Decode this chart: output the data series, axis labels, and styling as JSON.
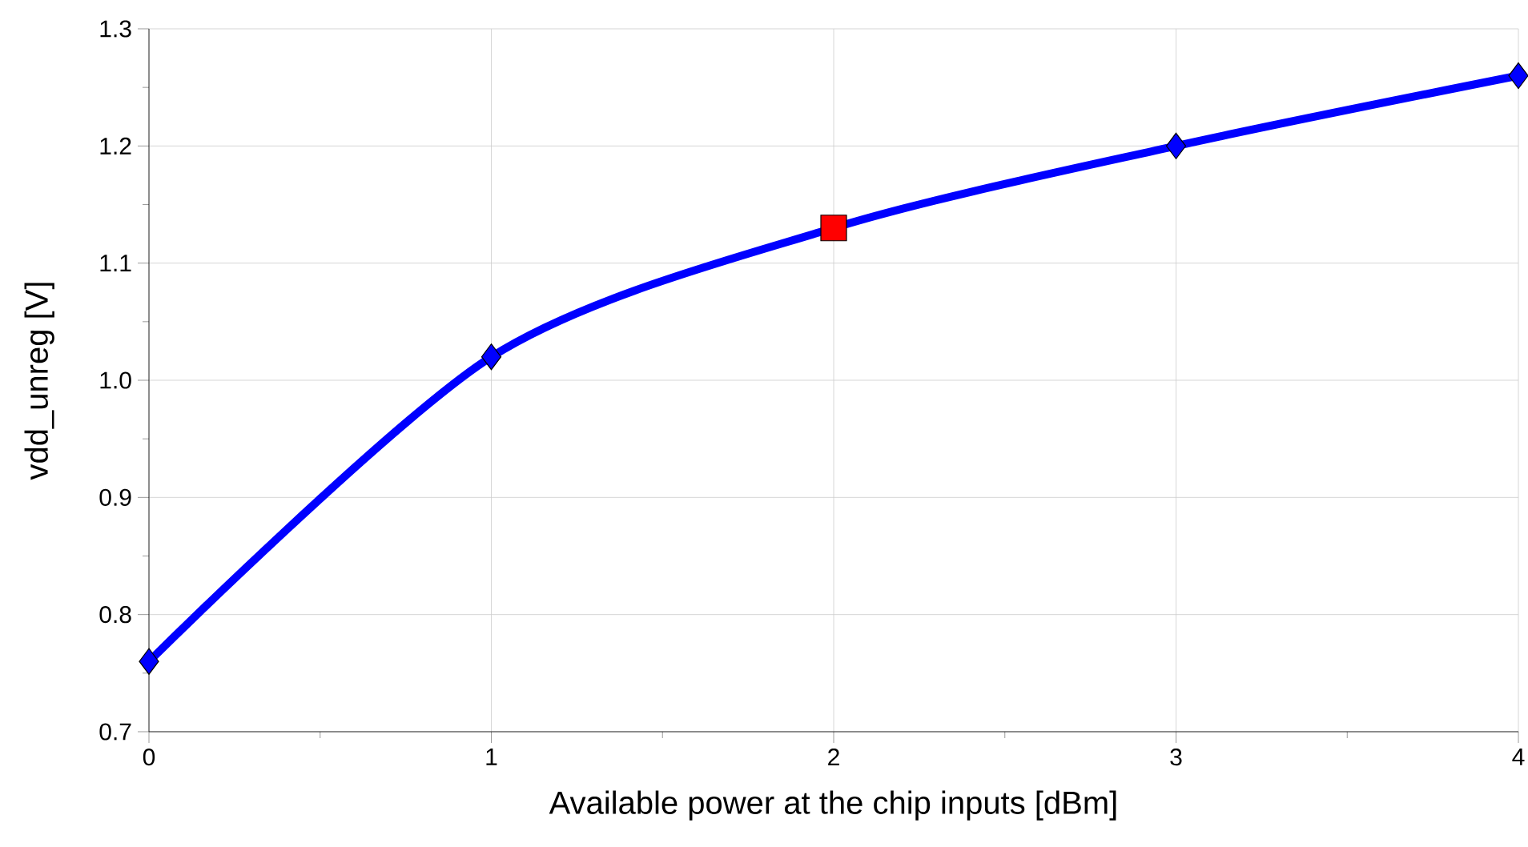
{
  "chart_data": {
    "type": "line",
    "xlabel": "Available power at the chip inputs [dBm]",
    "ylabel": "vdd_unreg [V]",
    "xlim": [
      0,
      4
    ],
    "xticks": [
      0,
      1,
      2,
      3,
      4
    ],
    "ylim": [
      0.7,
      1.3
    ],
    "yticks": [
      0.7,
      0.8,
      0.9,
      {
        "value": 1.0,
        "label": "1.0"
      },
      1.1,
      1.2,
      1.3
    ],
    "grid": true,
    "series": [
      {
        "color": "#0000ff",
        "x": [
          0,
          1,
          2,
          3,
          4
        ],
        "values": [
          0.76,
          1.02,
          1.13,
          1.2,
          1.26
        ],
        "marker": "none"
      },
      {
        "type": "scatter",
        "color": "#0000ff",
        "x": [
          0,
          1,
          3,
          4
        ],
        "values": [
          0.76,
          1.02,
          1.2,
          1.26
        ],
        "marker": "diamond"
      },
      {
        "type": "scatter",
        "color": "#ff0000",
        "x": [
          2
        ],
        "values": [
          1.13
        ],
        "marker": "square"
      }
    ]
  }
}
